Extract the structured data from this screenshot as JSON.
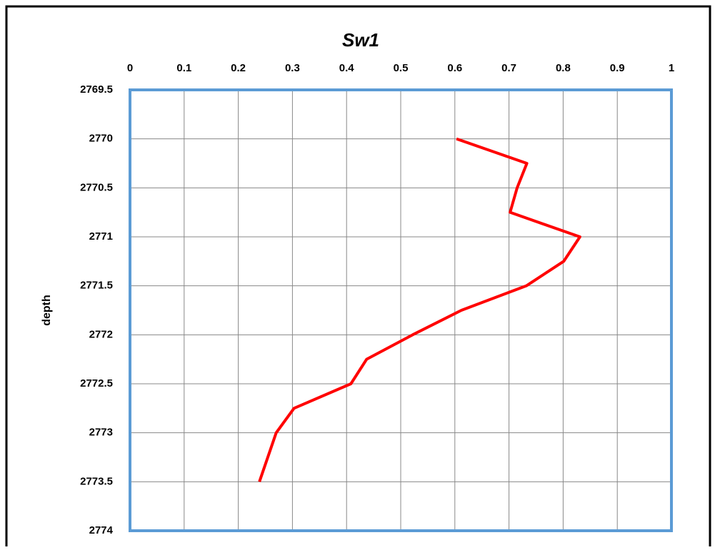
{
  "chart_data": {
    "type": "line",
    "title": "Sw1",
    "y_label": "depth",
    "x": [
      0.603,
      0.733,
      0.715,
      0.702,
      0.831,
      0.801,
      0.732,
      0.612,
      0.522,
      0.437,
      0.408,
      0.303,
      0.27,
      0.239
    ],
    "y": [
      2770,
      2770.25,
      2770.5,
      2770.75,
      2771,
      2771.25,
      2771.5,
      2771.75,
      2772,
      2772.25,
      2772.5,
      2772.75,
      2773,
      2773.5
    ],
    "color": "#ff0000",
    "xlim": [
      0,
      1
    ],
    "xticks": [
      0,
      0.1,
      0.2,
      0.3,
      0.4,
      0.5,
      0.6,
      0.7,
      0.8,
      0.9,
      1
    ],
    "ylim": [
      2769.5,
      2774
    ],
    "yticks": [
      2769.5,
      2770,
      2770.5,
      2771,
      2771.5,
      2772,
      2772.5,
      2773,
      2773.5,
      2774
    ],
    "y_inverted": true,
    "grid": true
  }
}
